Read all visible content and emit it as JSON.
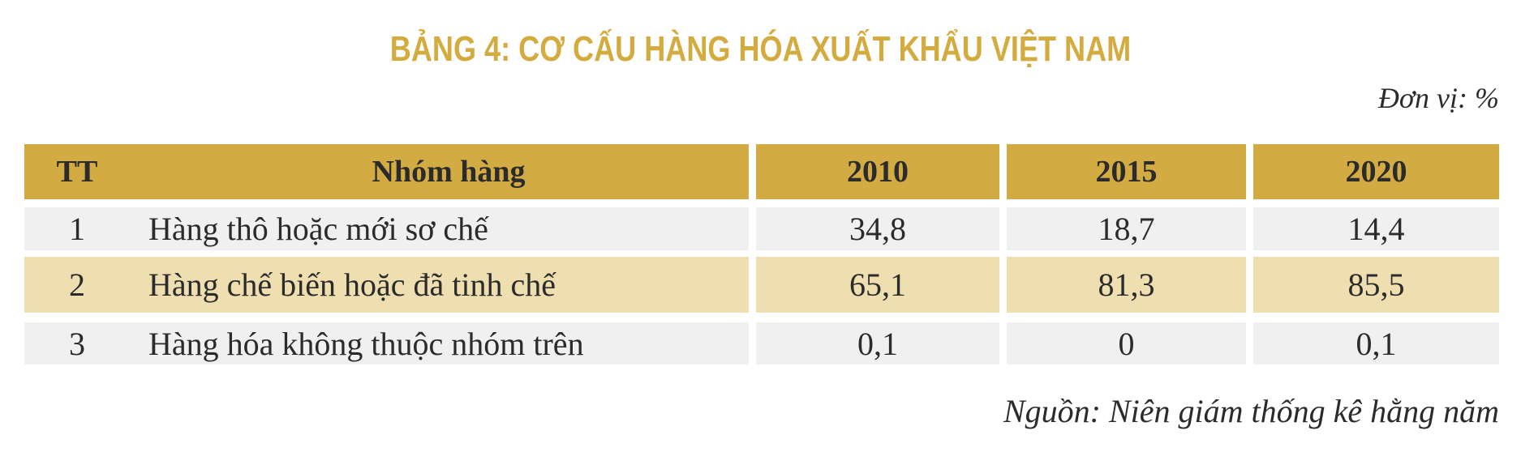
{
  "title": "BẢNG 4: CƠ CẤU HÀNG HÓA XUẤT KHẨU VIỆT NAM",
  "unit": "Đơn vị: %",
  "table": {
    "header": [
      "TT",
      "Nhóm hàng",
      "2010",
      "2015",
      "2020"
    ],
    "rows": [
      [
        "1",
        "Hàng thô hoặc mới sơ chế",
        "34,8",
        "18,7",
        "14,4"
      ],
      [
        "2",
        "Hàng chế biến hoặc đã tinh chế",
        "65,1",
        "81,3",
        "85,5"
      ],
      [
        "3",
        "Hàng hóa không thuộc nhóm trên",
        "0,1",
        "0",
        "0,1"
      ]
    ]
  },
  "source": "Nguồn: Niên giám thống kê hằng năm"
}
